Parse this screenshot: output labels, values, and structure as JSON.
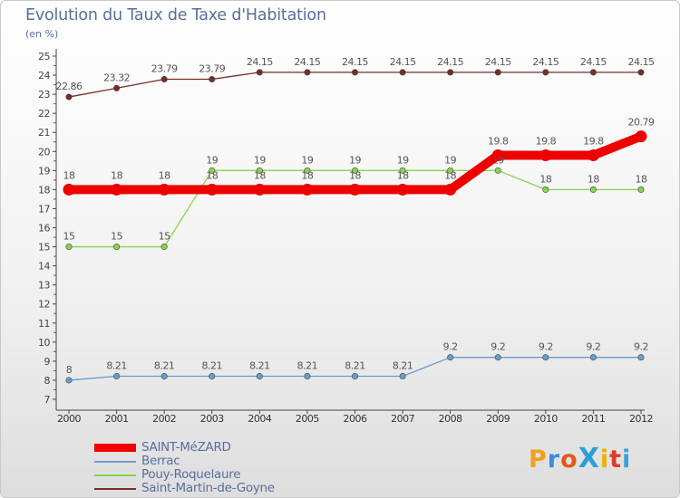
{
  "title": "Evolution du Taux de Taxe d'Habitation",
  "subtitle": "(en %)",
  "chart_data": {
    "type": "line",
    "title": "Evolution du Taux de Taxe d'Habitation",
    "ylabel": "(en %)",
    "xlabel": "",
    "x": [
      "2000",
      "2001",
      "2002",
      "2003",
      "2004",
      "2005",
      "2006",
      "2007",
      "2008",
      "2009",
      "2010",
      "2011",
      "2012"
    ],
    "ylim": [
      7,
      25
    ],
    "yticks": [
      "7",
      "8",
      "9",
      "10",
      "11",
      "12",
      "13",
      "14",
      "15",
      "16",
      "17",
      "18",
      "19",
      "20",
      "21",
      "22",
      "23",
      "24",
      "25"
    ],
    "grid": false,
    "legend_position": "bottom-left",
    "series": [
      {
        "name": "SAINT-MéZARD",
        "color": "#ee0000",
        "values": [
          18,
          18,
          18,
          18,
          18,
          18,
          18,
          18,
          18,
          19.8,
          19.8,
          19.8,
          20.79
        ],
        "labels": [
          "18",
          "18",
          "18",
          "18",
          "18",
          "18",
          "18",
          "18",
          "18",
          "19.8",
          "19.8",
          "19.8",
          "20.79"
        ]
      },
      {
        "name": "Berrac",
        "color": "#6a9dcb",
        "values": [
          8,
          8.21,
          8.21,
          8.21,
          8.21,
          8.21,
          8.21,
          8.21,
          9.2,
          9.2,
          9.2,
          9.2,
          9.2
        ],
        "labels": [
          "8",
          "8.21",
          "8.21",
          "8.21",
          "8.21",
          "8.21",
          "8.21",
          "8.21",
          "9.2",
          "9.2",
          "9.2",
          "9.2",
          "9.2"
        ]
      },
      {
        "name": "Pouy-Roquelaure",
        "color": "#88d44e",
        "values": [
          15,
          15,
          15,
          19,
          19,
          19,
          19,
          19,
          19,
          19,
          18,
          18,
          18
        ],
        "labels": [
          "15",
          "15",
          "15",
          "19",
          "19",
          "19",
          "19",
          "19",
          "19",
          "19",
          "18",
          "18",
          "18"
        ]
      },
      {
        "name": "Saint-Martin-de-Goyne",
        "color": "#7a2a2a",
        "values": [
          22.86,
          23.32,
          23.79,
          23.79,
          24.15,
          24.15,
          24.15,
          24.15,
          24.15,
          24.15,
          24.15,
          24.15,
          24.15
        ],
        "labels": [
          "22.86",
          "23.32",
          "23.79",
          "23.79",
          "24.15",
          "24.15",
          "24.15",
          "24.15",
          "24.15",
          "24.15",
          "24.15",
          "24.15",
          "24.15"
        ]
      }
    ]
  },
  "logo": {
    "text": "ProXiti",
    "colors": [
      "#f0a020",
      "#3a8ed6",
      "#e05a1a",
      "#2aa0d8",
      "#f0b000",
      "#e03a2a",
      "#3aa0e0"
    ]
  }
}
